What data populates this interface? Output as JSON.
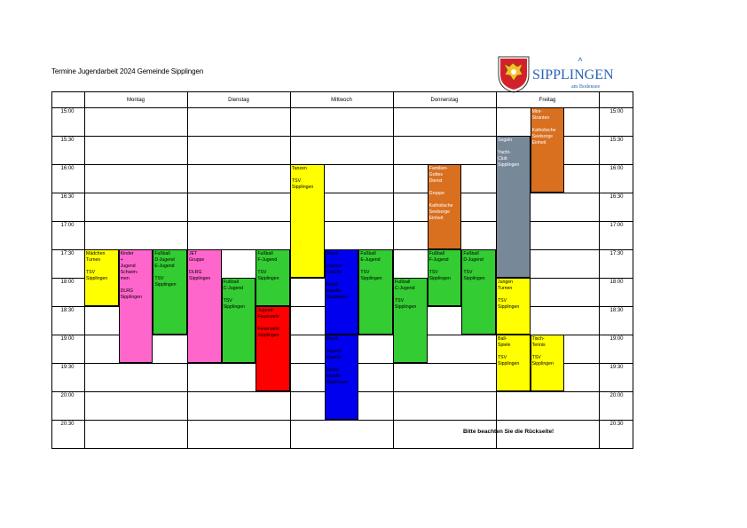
{
  "header": {
    "title": "Termine Jugendarbeit 2024 Gemeinde Sipplingen",
    "logo_text": "SIPPLINGEN",
    "logo_sub": "am Bodensee"
  },
  "days": [
    "Montag",
    "Dienstag",
    "Mittwoch",
    "Donnerstag",
    "Freitag"
  ],
  "times": [
    "15:00",
    "15:30",
    "16:00",
    "16:30",
    "17:00",
    "17:30",
    "18:00",
    "18:30",
    "19:00",
    "19:30",
    "20:00",
    "20:30"
  ],
  "footer_note": "Bitte beachten Sie die Rückseite!",
  "events": [
    {
      "label": "Mädchen\nTurnen\n\nTSV\nSipplingen",
      "color": "yellow"
    },
    {
      "label": "Kinder\n+\nJugend\nSchwim-\nmen\n\nDLRG\nSipplingen",
      "color": "pink"
    },
    {
      "label": "Fußball\nD-Jugend\nE-Jugend\n\nTSV\nSipplingen",
      "color": "green"
    },
    {
      "label": "JET\nGruppe\n\nDLRG\nSipplingen",
      "color": "pink"
    },
    {
      "label": "Fußball\nC-Jugend\n\nTSV\nSipplingen",
      "color": "green"
    },
    {
      "label": "Fußball\nF-Jugend\n\nTSV\nSipplingen",
      "color": "green"
    },
    {
      "label": "Jugend-\nFeuerwehr\n\nFeuerwehr\nSipplingen",
      "color": "red"
    },
    {
      "label": "Tanzen\n\nTSV\nSipplingen",
      "color": "yellow"
    },
    {
      "label": "Musik\n\nJugend-\nKapelle\n\nMusik-\nkapelle\nSipplingen",
      "color": "blue"
    },
    {
      "label": "Musik\n\nJugend\nKapelle\n\nMusik-\nkapelle\nSipplingen",
      "color": "blue"
    },
    {
      "label": "Fußball\nE-Jugend\n\nTSV\nSipplingen",
      "color": "green"
    },
    {
      "label": "Fußball\nC-Jugend\n\nTSV\nSipplingen",
      "color": "green"
    },
    {
      "label": "Familien-\nGottes\nDienst\n\nGruppe\n\nKatholische\nSeelsorge\nEinheit",
      "color": "orange"
    },
    {
      "label": "Fußball\nF-Jugend\n\nTSV\nSipplingen",
      "color": "green"
    },
    {
      "label": "Fußball\nD-Jugend\n\nTSV\nSipplingen",
      "color": "green"
    },
    {
      "label": "Segeln\n\nYacht-\nClub\nSipplingen",
      "color": "slate"
    },
    {
      "label": "Mini-\nStranten\n\nKatholische\nSeelsorge\nEinheit",
      "color": "orange"
    },
    {
      "label": "Jungen\nTurnen\n\nTSV\nSipplingen",
      "color": "yellow"
    },
    {
      "label": "Ball-\nSpiele\n\nTSV\nSipplingen",
      "color": "yellow"
    },
    {
      "label": "Tisch-\nTennis\n\nTSV\nSipplingen",
      "color": "yellow"
    }
  ]
}
